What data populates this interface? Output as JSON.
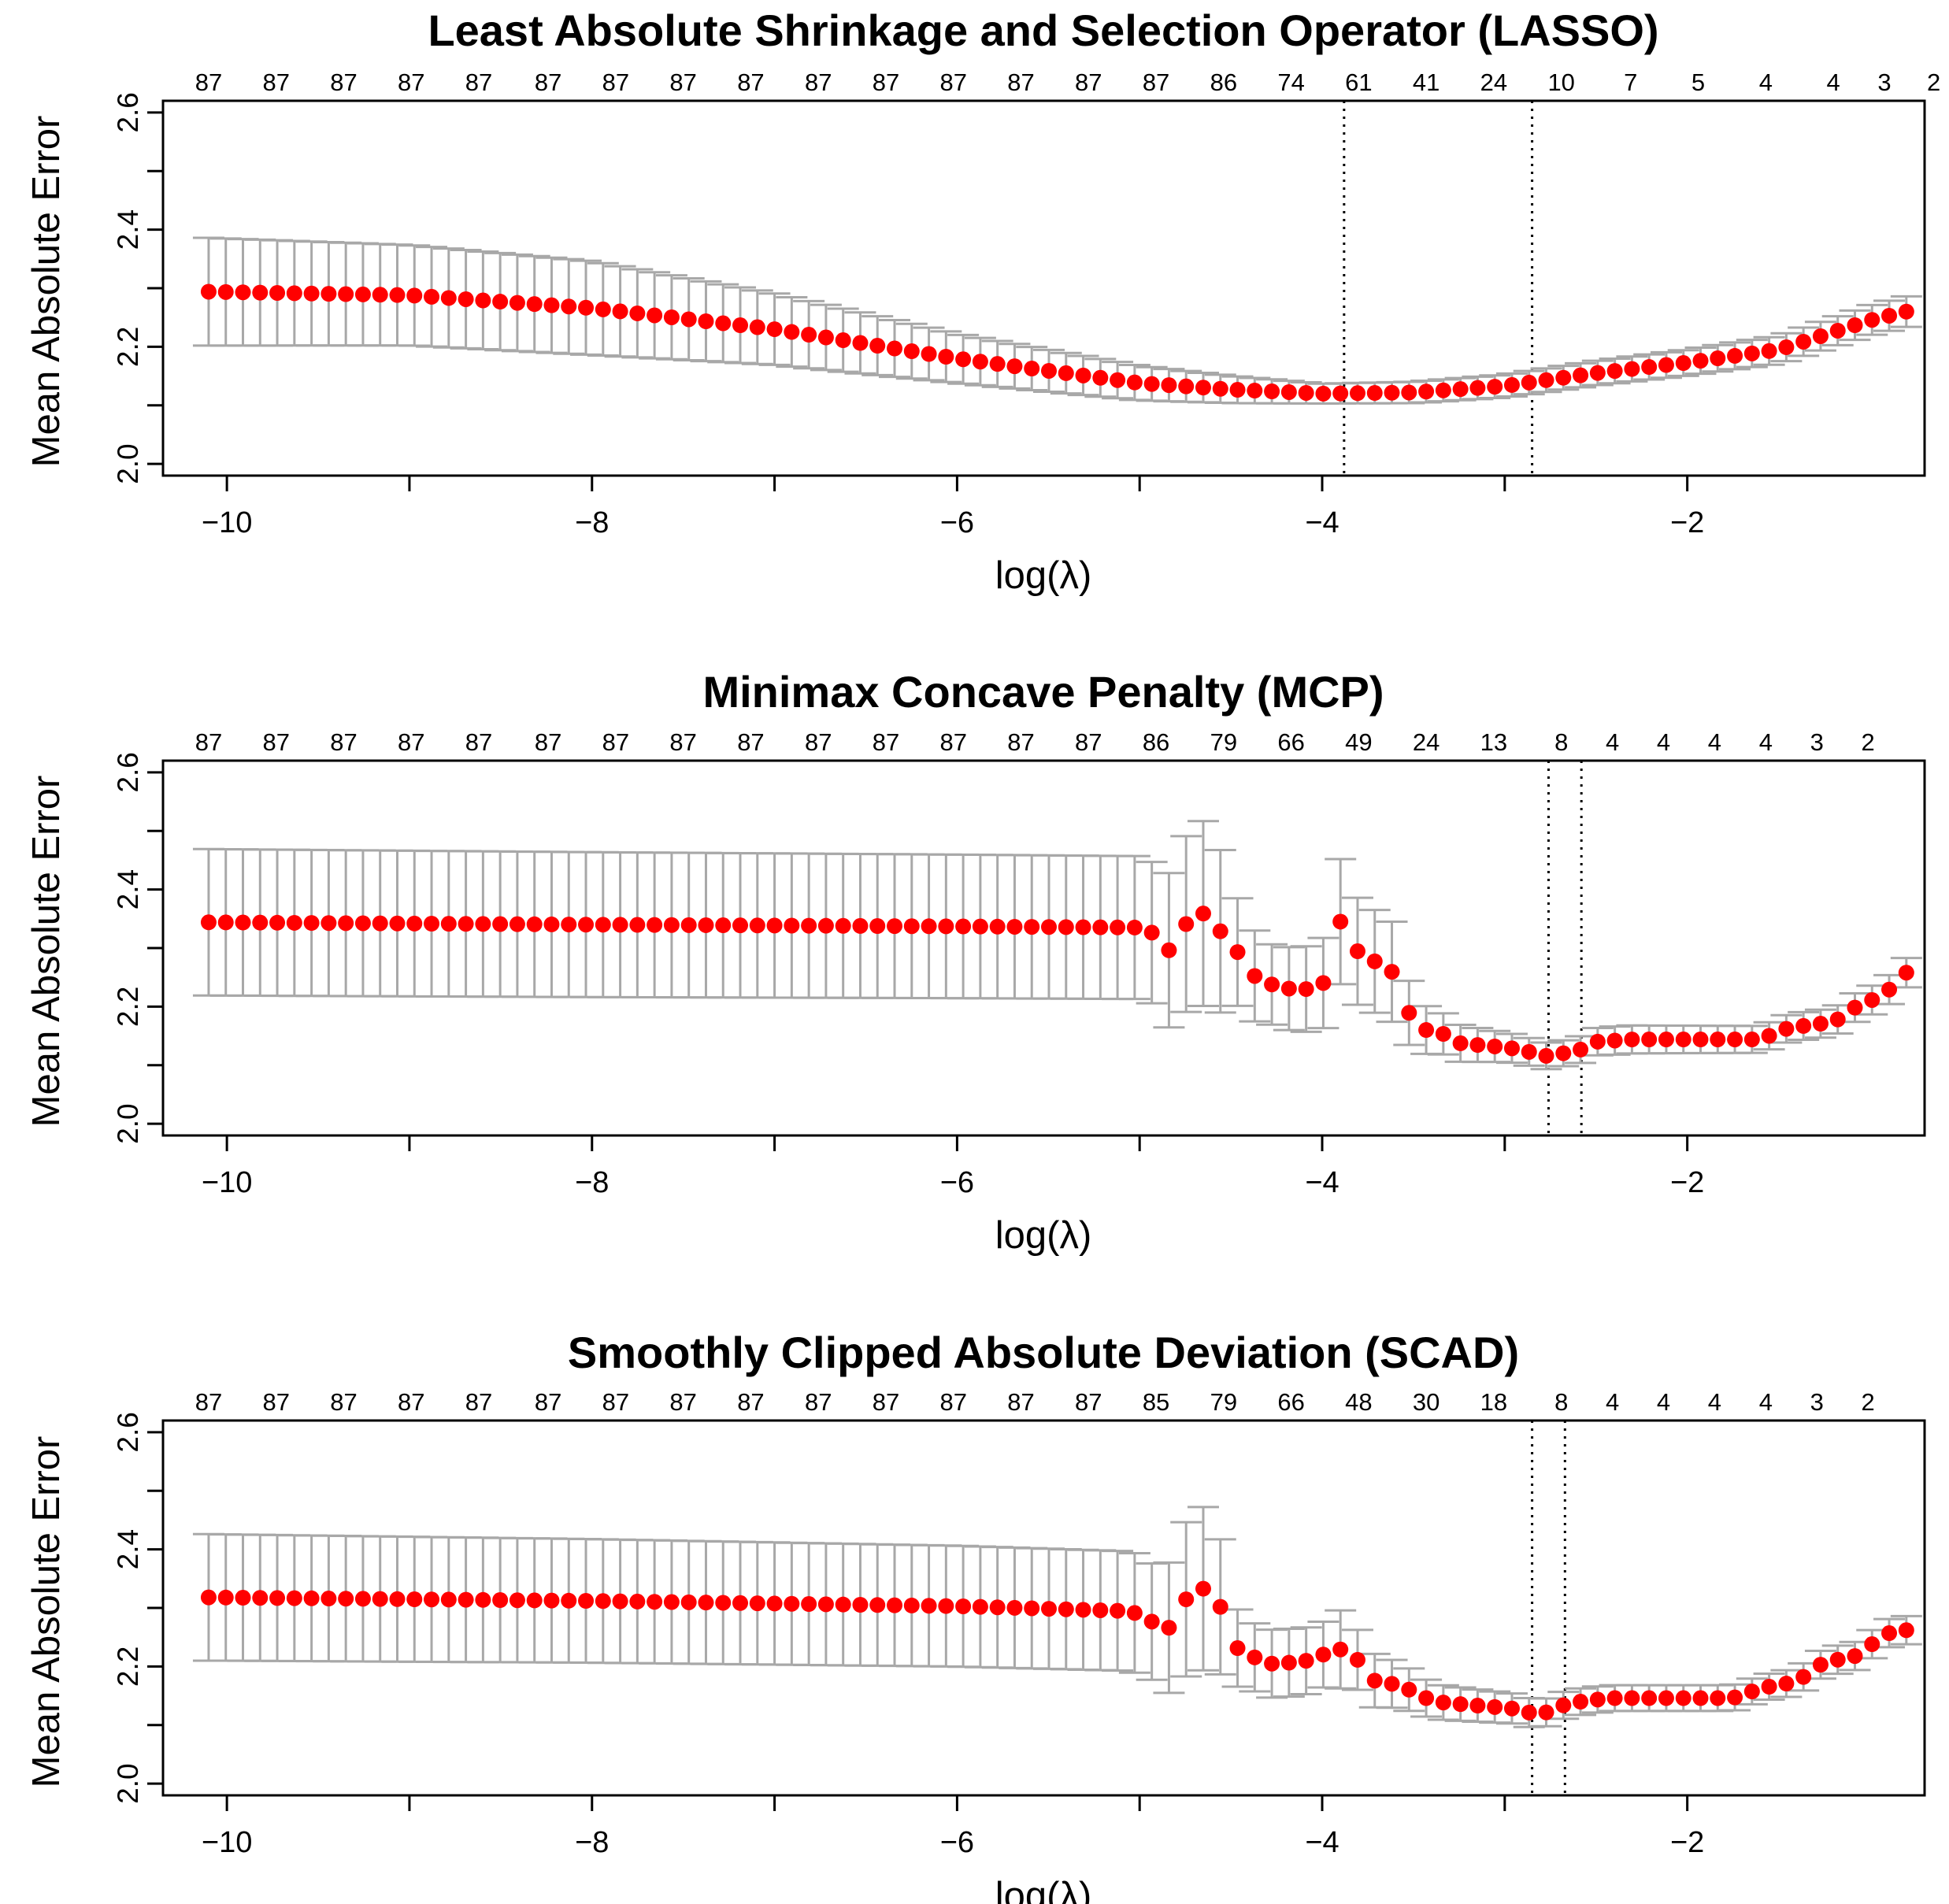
{
  "chart_data": [
    {
      "type": "scatter",
      "title": "Least Absolute Shrinkage and Selection Operator (LASSO)",
      "xlabel": "log(λ)",
      "ylabel": "Mean Absolute Error",
      "xlim": [
        -10.35,
        -0.7
      ],
      "ylim": [
        1.98,
        2.62
      ],
      "x_ticks": [
        -10,
        -8,
        -6,
        -4,
        -2
      ],
      "x_tick_labels": [
        "−10",
        "−8",
        "−6",
        "−4",
        "−2"
      ],
      "y_ticks": [
        2.0,
        2.2,
        2.4,
        2.6
      ],
      "y_tick_labels": [
        "2.0",
        "2.2",
        "2.4",
        "2.6"
      ],
      "top_axis_x": [
        -10.1,
        -9.73,
        -9.36,
        -8.99,
        -8.62,
        -8.24,
        -7.87,
        -7.5,
        -7.13,
        -6.76,
        -6.39,
        -6.02,
        -5.65,
        -5.28,
        -4.91,
        -4.54,
        -4.17,
        -3.8,
        -3.43,
        -3.06,
        -2.69,
        -2.31,
        -1.94,
        -1.57,
        -1.2,
        -0.92,
        -0.65
      ],
      "top_axis_labels": [
        "87",
        "87",
        "87",
        "87",
        "87",
        "87",
        "87",
        "87",
        "87",
        "87",
        "87",
        "87",
        "87",
        "87",
        "87",
        "86",
        "74",
        "61",
        "41",
        "24",
        "10",
        "7",
        "5",
        "4",
        "4",
        "3",
        "2"
      ],
      "vlines": [
        -3.88,
        -2.85
      ],
      "series": [
        {
          "x_start": -10.1,
          "x_end": -0.8,
          "count": 100,
          "anchors": [
            [
              -10.1,
              2.294
            ],
            [
              -9.0,
              2.288
            ],
            [
              -8.0,
              2.266
            ],
            [
              -7.0,
              2.23
            ],
            [
              -6.0,
              2.18
            ],
            [
              -5.0,
              2.138
            ],
            [
              -4.5,
              2.127
            ],
            [
              -4.0,
              2.12
            ],
            [
              -3.5,
              2.122
            ],
            [
              -3.0,
              2.133
            ],
            [
              -2.5,
              2.155
            ],
            [
              -2.0,
              2.173
            ],
            [
              -1.5,
              2.195
            ],
            [
              -1.0,
              2.245
            ],
            [
              -0.8,
              2.26
            ]
          ],
          "se_anchors": [
            [
              -10.1,
              0.092
            ],
            [
              -8.0,
              0.08
            ],
            [
              -6.0,
              0.042
            ],
            [
              -4.0,
              0.017
            ],
            [
              -2.0,
              0.022
            ],
            [
              -0.8,
              0.026
            ]
          ]
        }
      ]
    },
    {
      "type": "scatter",
      "title": "Minimax Concave Penalty (MCP)",
      "xlabel": "log(λ)",
      "ylabel": "Mean Absolute Error",
      "xlim": [
        -10.35,
        -0.7
      ],
      "ylim": [
        1.98,
        2.62
      ],
      "x_ticks": [
        -10,
        -8,
        -6,
        -4,
        -2
      ],
      "x_tick_labels": [
        "−10",
        "−8",
        "−6",
        "−4",
        "−2"
      ],
      "y_ticks": [
        2.0,
        2.2,
        2.4,
        2.6
      ],
      "y_tick_labels": [
        "2.0",
        "2.2",
        "2.4",
        "2.6"
      ],
      "top_axis_x": [
        -10.1,
        -9.73,
        -9.36,
        -8.99,
        -8.62,
        -8.24,
        -7.87,
        -7.5,
        -7.13,
        -6.76,
        -6.39,
        -6.02,
        -5.65,
        -5.28,
        -4.91,
        -4.54,
        -4.17,
        -3.8,
        -3.43,
        -3.06,
        -2.69,
        -2.41,
        -2.13,
        -1.85,
        -1.57,
        -1.29,
        -1.01
      ],
      "top_axis_labels": [
        "87",
        "87",
        "87",
        "87",
        "87",
        "87",
        "87",
        "87",
        "87",
        "87",
        "87",
        "87",
        "87",
        "87",
        "86",
        "79",
        "66",
        "49",
        "24",
        "13",
        "8",
        "4",
        "4",
        "4",
        "4",
        "3",
        "2"
      ],
      "vlines": [
        -2.76,
        -2.58
      ],
      "series": [
        {
          "x_start": -10.1,
          "x_end": -0.8,
          "count": 100,
          "anchors": [
            [
              -10.1,
              2.344
            ],
            [
              -8.0,
              2.34
            ],
            [
              -6.0,
              2.337
            ],
            [
              -5.0,
              2.335
            ],
            [
              -4.9,
              2.322
            ],
            [
              -4.82,
              2.288
            ],
            [
              -4.73,
              2.352
            ],
            [
              -4.64,
              2.36
            ],
            [
              -4.54,
              2.322
            ],
            [
              -4.45,
              2.288
            ],
            [
              -4.36,
              2.248
            ],
            [
              -4.26,
              2.236
            ],
            [
              -4.17,
              2.23
            ],
            [
              -4.08,
              2.23
            ],
            [
              -3.98,
              2.242
            ],
            [
              -3.89,
              2.358
            ],
            [
              -3.8,
              2.29
            ],
            [
              -3.71,
              2.277
            ],
            [
              -3.61,
              2.258
            ],
            [
              -3.52,
              2.186
            ],
            [
              -3.43,
              2.16
            ],
            [
              -3.33,
              2.153
            ],
            [
              -3.24,
              2.137
            ],
            [
              -2.98,
              2.13
            ],
            [
              -2.87,
              2.123
            ],
            [
              -2.76,
              2.115
            ],
            [
              -2.58,
              2.127
            ],
            [
              -2.5,
              2.14
            ],
            [
              -2.3,
              2.144
            ],
            [
              -1.6,
              2.144
            ],
            [
              -1.45,
              2.163
            ],
            [
              -1.3,
              2.17
            ],
            [
              -1.2,
              2.173
            ],
            [
              -1.06,
              2.203
            ],
            [
              -0.93,
              2.218
            ],
            [
              -0.8,
              2.258
            ]
          ],
          "se_anchors": [
            [
              -10.1,
              0.125
            ],
            [
              -5.0,
              0.122
            ],
            [
              -4.9,
              0.12
            ],
            [
              -4.72,
              0.155
            ],
            [
              -4.6,
              0.16
            ],
            [
              -4.46,
              0.09
            ],
            [
              -4.3,
              0.068
            ],
            [
              -4.0,
              0.075
            ],
            [
              -3.89,
              0.11
            ],
            [
              -3.8,
              0.09
            ],
            [
              -3.6,
              0.085
            ],
            [
              -3.5,
              0.045
            ],
            [
              -3.3,
              0.033
            ],
            [
              -3.0,
              0.025
            ],
            [
              -2.7,
              0.022
            ],
            [
              -2.4,
              0.024
            ],
            [
              -1.6,
              0.023
            ],
            [
              -1.2,
              0.024
            ],
            [
              -0.8,
              0.025
            ]
          ]
        }
      ]
    },
    {
      "type": "scatter",
      "title": "Smoothly Clipped Absolute Deviation (SCAD)",
      "xlabel": "log(λ)",
      "ylabel": "Mean Absolute Error",
      "xlim": [
        -10.35,
        -0.7
      ],
      "ylim": [
        1.98,
        2.62
      ],
      "x_ticks": [
        -10,
        -8,
        -6,
        -4,
        -2
      ],
      "x_tick_labels": [
        "−10",
        "−8",
        "−6",
        "−4",
        "−2"
      ],
      "y_ticks": [
        2.0,
        2.2,
        2.4,
        2.6
      ],
      "y_tick_labels": [
        "2.0",
        "2.2",
        "2.4",
        "2.6"
      ],
      "top_axis_x": [
        -10.1,
        -9.73,
        -9.36,
        -8.99,
        -8.62,
        -8.24,
        -7.87,
        -7.5,
        -7.13,
        -6.76,
        -6.39,
        -6.02,
        -5.65,
        -5.28,
        -4.91,
        -4.54,
        -4.17,
        -3.8,
        -3.43,
        -3.06,
        -2.69,
        -2.41,
        -2.13,
        -1.85,
        -1.57,
        -1.29,
        -1.01
      ],
      "top_axis_labels": [
        "87",
        "87",
        "87",
        "87",
        "87",
        "87",
        "87",
        "87",
        "87",
        "87",
        "87",
        "87",
        "87",
        "87",
        "85",
        "79",
        "66",
        "48",
        "30",
        "18",
        "8",
        "4",
        "4",
        "4",
        "4",
        "3",
        "2"
      ],
      "vlines": [
        -2.85,
        -2.67
      ],
      "series": [
        {
          "x_start": -10.1,
          "x_end": -0.8,
          "count": 100,
          "anchors": [
            [
              -10.1,
              2.318
            ],
            [
              -8.0,
              2.312
            ],
            [
              -6.0,
              2.303
            ],
            [
              -5.1,
              2.295
            ],
            [
              -5.0,
              2.29
            ],
            [
              -4.9,
              2.27
            ],
            [
              -4.82,
              2.265
            ],
            [
              -4.73,
              2.325
            ],
            [
              -4.64,
              2.334
            ],
            [
              -4.54,
              2.295
            ],
            [
              -4.45,
              2.22
            ],
            [
              -4.36,
              2.215
            ],
            [
              -4.26,
              2.203
            ],
            [
              -4.17,
              2.207
            ],
            [
              -4.08,
              2.21
            ],
            [
              -3.98,
              2.222
            ],
            [
              -3.89,
              2.23
            ],
            [
              -3.8,
              2.21
            ],
            [
              -3.71,
              2.175
            ],
            [
              -3.61,
              2.17
            ],
            [
              -3.52,
              2.16
            ],
            [
              -3.43,
              2.146
            ],
            [
              -3.33,
              2.138
            ],
            [
              -3.1,
              2.132
            ],
            [
              -2.95,
              2.128
            ],
            [
              -2.85,
              2.12
            ],
            [
              -2.76,
              2.122
            ],
            [
              -2.67,
              2.135
            ],
            [
              -2.55,
              2.142
            ],
            [
              -2.4,
              2.146
            ],
            [
              -1.75,
              2.146
            ],
            [
              -1.65,
              2.157
            ],
            [
              -1.5,
              2.17
            ],
            [
              -1.4,
              2.172
            ],
            [
              -1.3,
              2.2
            ],
            [
              -1.2,
              2.21
            ],
            [
              -1.05,
              2.22
            ],
            [
              -0.93,
              2.255
            ],
            [
              -0.8,
              2.262
            ]
          ],
          "se_anchors": [
            [
              -10.1,
              0.108
            ],
            [
              -5.0,
              0.102
            ],
            [
              -4.9,
              0.098
            ],
            [
              -4.73,
              0.135
            ],
            [
              -4.64,
              0.14
            ],
            [
              -4.54,
              0.11
            ],
            [
              -4.45,
              0.058
            ],
            [
              -4.2,
              0.058
            ],
            [
              -3.98,
              0.056
            ],
            [
              -3.89,
              0.068
            ],
            [
              -3.8,
              0.05
            ],
            [
              -3.6,
              0.04
            ],
            [
              -3.4,
              0.03
            ],
            [
              -3.0,
              0.026
            ],
            [
              -2.7,
              0.023
            ],
            [
              -2.4,
              0.022
            ],
            [
              -1.6,
              0.022
            ],
            [
              -1.2,
              0.024
            ],
            [
              -0.8,
              0.024
            ]
          ]
        }
      ]
    }
  ]
}
